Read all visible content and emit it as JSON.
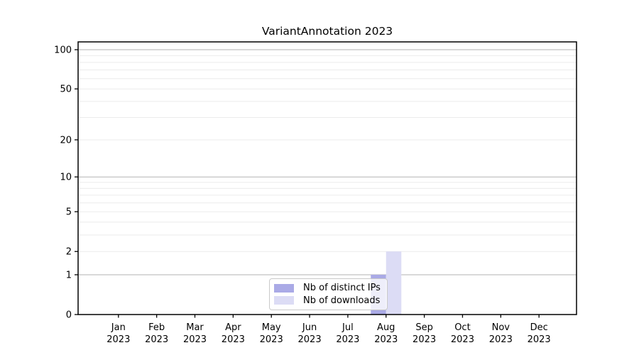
{
  "chart_data": {
    "type": "bar",
    "title": "VariantAnnotation 2023",
    "categories": [
      {
        "month": "Jan",
        "year": "2023"
      },
      {
        "month": "Feb",
        "year": "2023"
      },
      {
        "month": "Mar",
        "year": "2023"
      },
      {
        "month": "Apr",
        "year": "2023"
      },
      {
        "month": "May",
        "year": "2023"
      },
      {
        "month": "Jun",
        "year": "2023"
      },
      {
        "month": "Jul",
        "year": "2023"
      },
      {
        "month": "Aug",
        "year": "2023"
      },
      {
        "month": "Sep",
        "year": "2023"
      },
      {
        "month": "Oct",
        "year": "2023"
      },
      {
        "month": "Nov",
        "year": "2023"
      },
      {
        "month": "Dec",
        "year": "2023"
      }
    ],
    "series": [
      {
        "name": "Nb of distinct IPs",
        "color": "#aaaae6",
        "values": [
          0,
          0,
          0,
          0,
          0,
          0,
          0,
          1,
          0,
          0,
          0,
          0
        ]
      },
      {
        "name": "Nb of downloads",
        "color": "#dcdcf5",
        "values": [
          0,
          0,
          0,
          0,
          0,
          0,
          0,
          2,
          0,
          0,
          0,
          0
        ]
      }
    ],
    "y_axis": {
      "scale": "log1p",
      "tick_values": [
        0,
        1,
        2,
        5,
        10,
        20,
        50,
        100
      ],
      "major_gridlines": [
        1,
        10,
        100
      ],
      "minor_gridlines": [
        2,
        3,
        4,
        5,
        6,
        7,
        8,
        9,
        20,
        30,
        40,
        50,
        60,
        70,
        80,
        90
      ],
      "ylim_top_value": 100
    },
    "legend": {
      "position": "lower center",
      "entries": [
        "Nb of distinct IPs",
        "Nb of downloads"
      ]
    },
    "grid": "on",
    "xlabel": "",
    "ylabel": "",
    "colors": {
      "axis": "#000000",
      "major_grid": "#b3b3b3",
      "minor_grid": "#ebebeb",
      "text": "#000000"
    }
  }
}
